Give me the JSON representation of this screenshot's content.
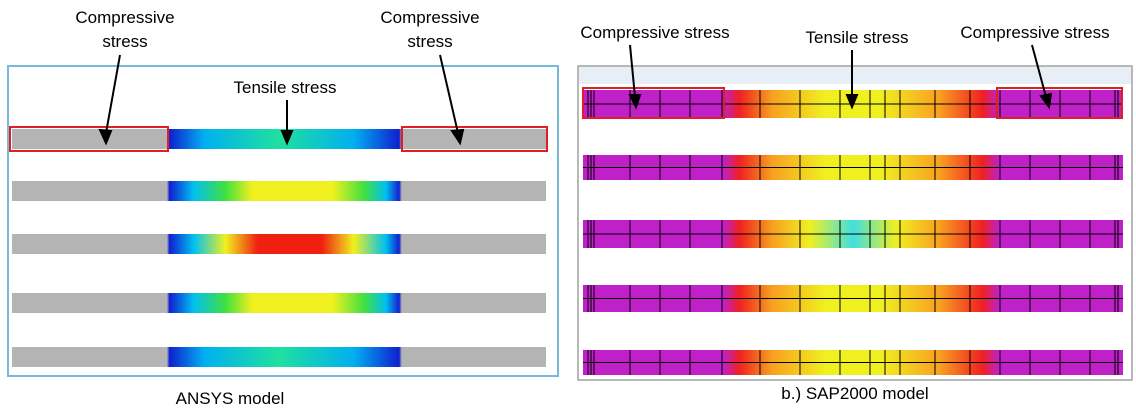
{
  "ansys": {
    "labels": {
      "compressive_left": "Compressive stress",
      "tensile": "Tensile stress",
      "compressive_right": "Compressive stress"
    },
    "caption": "ANSYS model"
  },
  "sap2000": {
    "labels": {
      "compressive_left": "Compressive stress",
      "tensile": "Tensile stress",
      "compressive_right": "Compressive stress"
    },
    "caption": "b.) SAP2000 model"
  }
}
